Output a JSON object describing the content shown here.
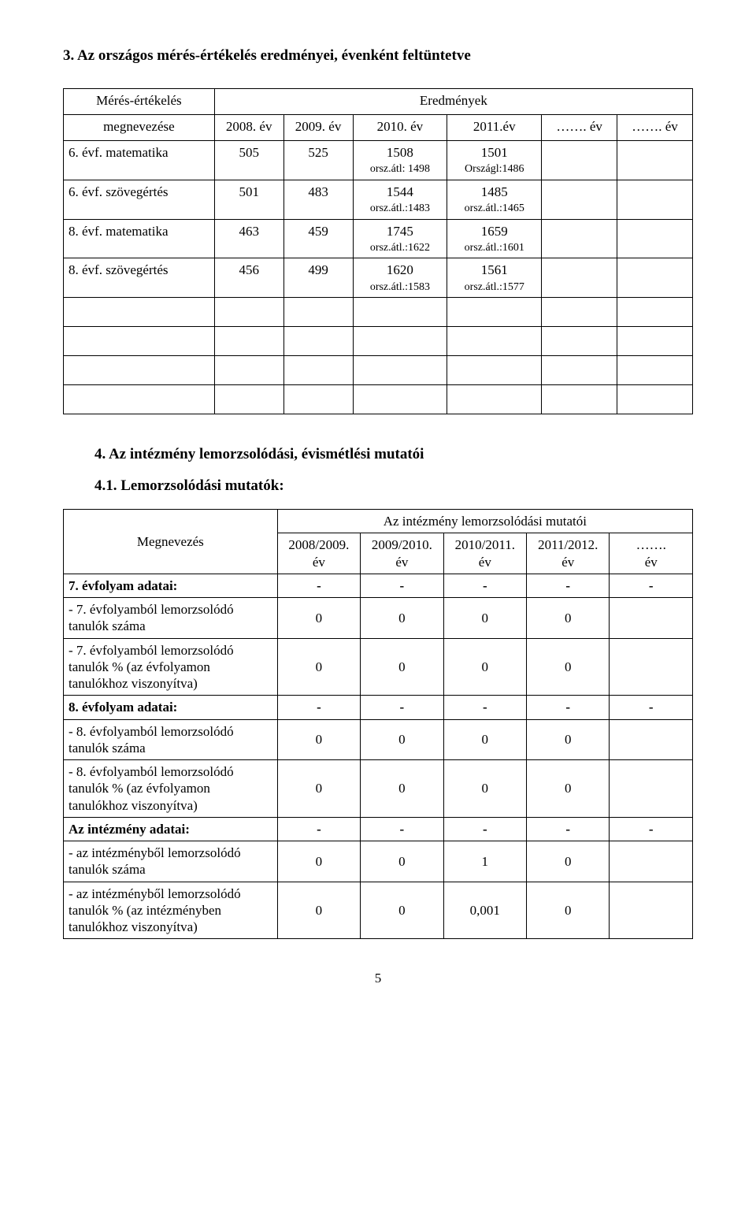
{
  "heading3": "3. Az országos mérés-értékelés eredményei, évenként feltüntetve",
  "table1": {
    "header_row1_col1": "Mérés-értékelés",
    "header_row2_col1": "megnevezése",
    "header_row1_span": "Eredmények",
    "years": [
      "2008. év",
      "2009. év",
      "2010. év",
      "2011.év",
      "……. év",
      "……. év"
    ],
    "rows": [
      {
        "label": "6. évf. matematika",
        "c1": "505",
        "c2": "525",
        "c3_val": "1508",
        "c3_sub": "orsz.átl: 1498",
        "c4_val": "1501",
        "c4_sub": "Országl:1486",
        "c5": "",
        "c6": ""
      },
      {
        "label": "6. évf. szövegértés",
        "c1": "501",
        "c2": "483",
        "c3_val": "1544",
        "c3_sub": "orsz.átl.:1483",
        "c4_val": "1485",
        "c4_sub": "orsz.átl.:1465",
        "c5": "",
        "c6": ""
      },
      {
        "label": "8. évf. matematika",
        "c1": "463",
        "c2": "459",
        "c3_val": "1745",
        "c3_sub": "orsz.átl.:1622",
        "c4_val": "1659",
        "c4_sub": "orsz.átl.:1601",
        "c5": "",
        "c6": ""
      },
      {
        "label": "8. évf. szövegértés",
        "c1": "456",
        "c2": "499",
        "c3_val": "1620",
        "c3_sub": "orsz.átl.:1583",
        "c4_val": "1561",
        "c4_sub": "orsz.átl.:1577",
        "c5": "",
        "c6": ""
      }
    ]
  },
  "heading4": "4. Az intézmény lemorzsolódási, évismétlési mutatói",
  "heading41": "4.1. Lemorzsolódási mutatók:",
  "table2": {
    "col1_header": "Megnevezés",
    "header_span": "Az intézmény lemorzsolódási mutatói",
    "years": [
      "2008/2009.\név",
      "2009/2010.\név",
      "2010/2011.\név",
      "2011/2012.\név",
      "…….\név"
    ],
    "rows": [
      {
        "label": "7. évfolyam adatai:",
        "bold": true,
        "vals": [
          "-",
          "-",
          "-",
          "-",
          "-"
        ]
      },
      {
        "label": "- 7. évfolyamból lemorzsolódó tanulók száma",
        "bold": false,
        "vals": [
          "0",
          "0",
          "0",
          "0",
          ""
        ]
      },
      {
        "label": "- 7. évfolyamból lemorzsolódó tanulók % (az évfolyamon tanulókhoz viszonyítva)",
        "bold": false,
        "vals": [
          "0",
          "0",
          "0",
          "0",
          ""
        ]
      },
      {
        "label": "8. évfolyam adatai:",
        "bold": true,
        "vals": [
          "-",
          "-",
          "-",
          "-",
          "-"
        ]
      },
      {
        "label": "- 8. évfolyamból lemorzsolódó tanulók száma",
        "bold": false,
        "vals": [
          "0",
          "0",
          "0",
          "0",
          ""
        ]
      },
      {
        "label": "- 8. évfolyamból lemorzsolódó tanulók % (az évfolyamon tanulókhoz viszonyítva)",
        "bold": false,
        "vals": [
          "0",
          "0",
          "0",
          "0",
          ""
        ]
      },
      {
        "label": "Az intézmény adatai:",
        "bold": true,
        "vals": [
          "-",
          "-",
          "-",
          "-",
          "-"
        ]
      },
      {
        "label": "- az intézményből lemorzsolódó tanulók száma",
        "bold": false,
        "vals": [
          "0",
          "0",
          "1",
          "0",
          ""
        ]
      },
      {
        "label": "- az intézményből lemorzsolódó tanulók % (az intézményben tanulókhoz viszonyítva)",
        "bold": false,
        "vals": [
          "0",
          "0",
          "0,001",
          "0",
          ""
        ]
      }
    ]
  },
  "page_number": "5"
}
